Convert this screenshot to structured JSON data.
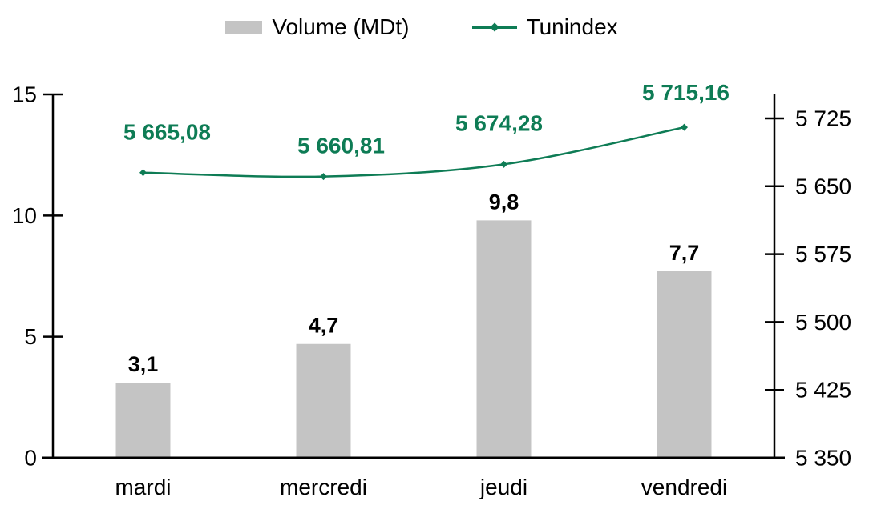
{
  "legend": {
    "items": [
      {
        "label": "Volume (MDt)",
        "marker": "bar-swatch",
        "color": "#c4c4c4"
      },
      {
        "label": "Tunindex",
        "marker": "line-with-diamond",
        "color": "#0e7c55"
      }
    ],
    "position": "top"
  },
  "chart_data": {
    "type": "combo-bar-line",
    "categories": [
      "mardi",
      "mercredi",
      "jeudi",
      "vendredi"
    ],
    "series": [
      {
        "name": "Volume (MDt)",
        "type": "bar",
        "axis": "left",
        "color": "#c4c4c4",
        "values": [
          3.1,
          4.7,
          9.8,
          7.7
        ],
        "data_labels": [
          "3,1",
          "4,7",
          "9,8",
          "7,7"
        ]
      },
      {
        "name": "Tunindex",
        "type": "line",
        "axis": "right",
        "color": "#0e7c55",
        "marker": "diamond",
        "values": [
          5665.08,
          5660.81,
          5674.28,
          5715.16
        ],
        "data_labels": [
          "5 665,08",
          "5 660,81",
          "5 674,28",
          "5 715,16"
        ]
      }
    ],
    "left_axis": {
      "range": [
        0,
        15
      ],
      "ticks": [
        0,
        5,
        10,
        15
      ],
      "tick_labels": [
        "0",
        "5",
        "10",
        "15"
      ]
    },
    "right_axis": {
      "range": [
        5350,
        5725
      ],
      "ticks": [
        5350,
        5425,
        5500,
        5575,
        5650,
        5725
      ],
      "tick_labels": [
        "5 350",
        "5 425",
        "5 500",
        "5 575",
        "5 650",
        "5 725"
      ]
    },
    "grid": false,
    "legend_position": "top"
  },
  "colors": {
    "bar": "#c4c4c4",
    "line": "#0e7c55",
    "axis": "#000000",
    "text": "#000000",
    "background": "#ffffff"
  }
}
